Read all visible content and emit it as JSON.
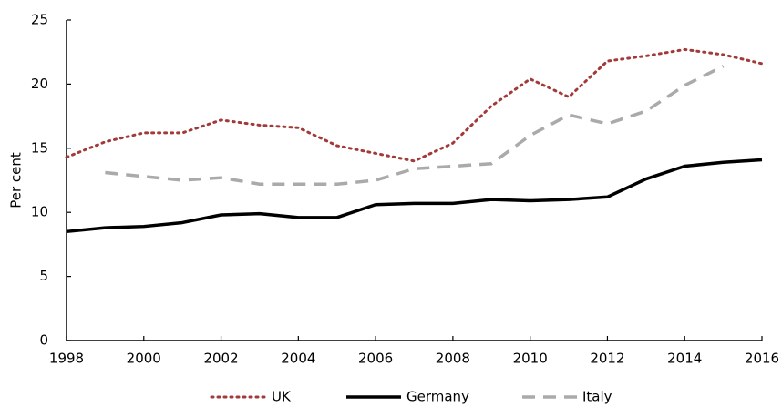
{
  "chart_data": {
    "type": "line",
    "y_label": "Per cent",
    "x": [
      1998,
      1999,
      2000,
      2001,
      2002,
      2003,
      2004,
      2005,
      2006,
      2007,
      2008,
      2009,
      2010,
      2011,
      2012,
      2013,
      2014,
      2015,
      2016
    ],
    "series": [
      {
        "name": "UK",
        "color": "#a33a3a",
        "dash": "dotted",
        "values": [
          14.3,
          15.5,
          16.2,
          16.2,
          17.2,
          16.8,
          16.6,
          15.2,
          14.6,
          14.0,
          15.4,
          18.3,
          20.4,
          19.0,
          21.8,
          22.2,
          22.7,
          22.3,
          21.6
        ]
      },
      {
        "name": "Germany",
        "color": "#000000",
        "dash": "solid",
        "values": [
          8.5,
          8.8,
          8.9,
          9.2,
          9.8,
          9.9,
          9.6,
          9.6,
          10.6,
          10.7,
          10.7,
          11.0,
          10.9,
          11.0,
          11.2,
          12.6,
          13.6,
          13.9,
          14.1
        ]
      },
      {
        "name": "Italy",
        "color": "#aaaaaa",
        "dash": "dashed",
        "values": [
          null,
          13.1,
          12.8,
          12.5,
          12.7,
          12.2,
          12.2,
          12.2,
          12.5,
          13.4,
          13.6,
          13.8,
          16.0,
          17.6,
          16.9,
          17.9,
          19.9,
          21.4,
          null
        ]
      }
    ],
    "xlim": [
      1998,
      2016
    ],
    "xticks": [
      1998,
      2000,
      2002,
      2004,
      2006,
      2008,
      2010,
      2012,
      2014,
      2016
    ],
    "ylim": [
      0,
      25
    ],
    "yticks": [
      0,
      5,
      10,
      15,
      20,
      25
    ],
    "grid": false,
    "legend": "bottom"
  }
}
